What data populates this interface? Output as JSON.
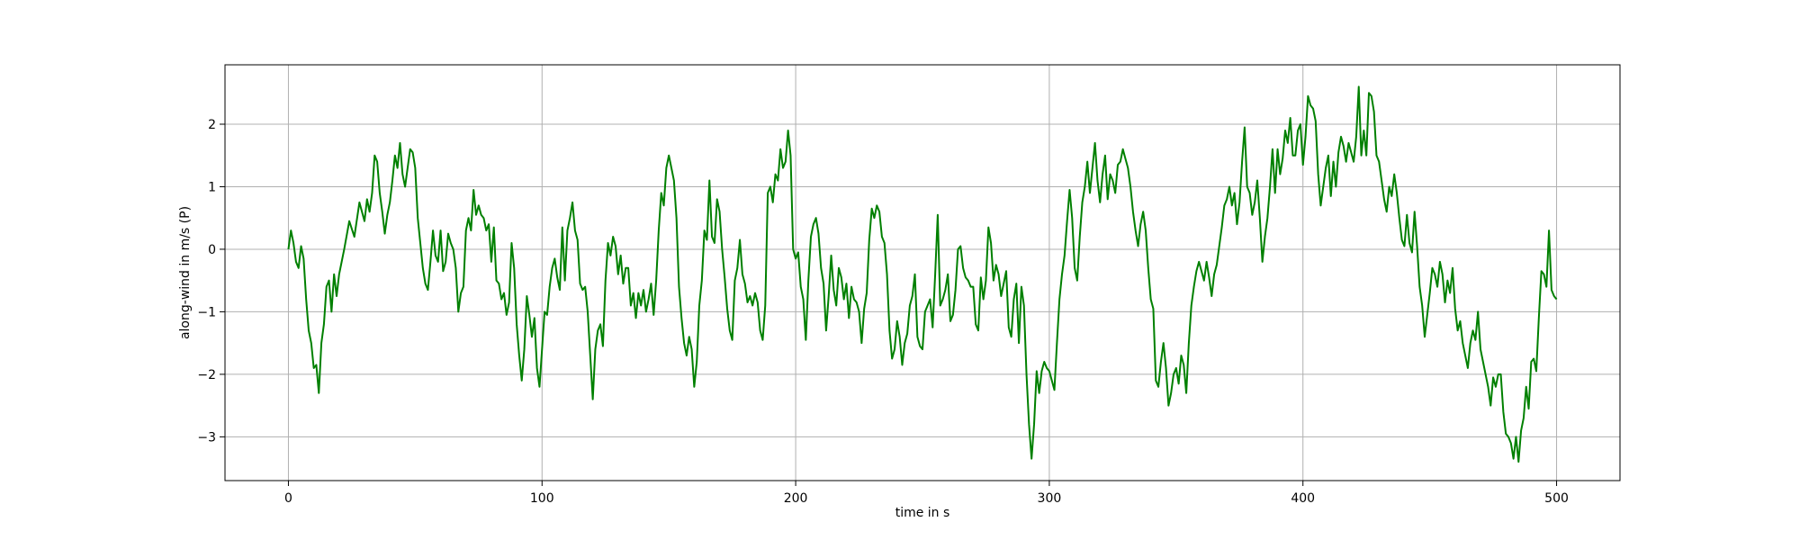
{
  "chart_data": {
    "type": "line",
    "title": "",
    "xlabel": "time in s",
    "ylabel": "along-wind in m/s (P)",
    "xlim": [
      -25,
      525
    ],
    "ylim": [
      -3.7,
      2.95
    ],
    "xticks": [
      0,
      100,
      200,
      300,
      400,
      500
    ],
    "yticks": [
      -3,
      -2,
      -1,
      0,
      1,
      2
    ],
    "xtick_labels": [
      "0",
      "100",
      "200",
      "300",
      "400",
      "500"
    ],
    "ytick_labels": [
      "−3",
      "−2",
      "−1",
      "0",
      "1",
      "2"
    ],
    "grid": true,
    "legend": "none",
    "colors": {
      "line": "#008000",
      "grid": "#b0b0b0",
      "frame": "#000000"
    },
    "series": [
      {
        "x": [
          0,
          1,
          2,
          3,
          4,
          5,
          6,
          7,
          8,
          9,
          10,
          11,
          12,
          13,
          14,
          15,
          16,
          17,
          18,
          19,
          20,
          22,
          24,
          26,
          28,
          30,
          31,
          32,
          33,
          34,
          35,
          36,
          37,
          38,
          39,
          40,
          41,
          42,
          43,
          44,
          45,
          46,
          47,
          48,
          49,
          50,
          51,
          52,
          53,
          54,
          55,
          56,
          57,
          58,
          59,
          60,
          61,
          62,
          63,
          64,
          65,
          66,
          67,
          68,
          69,
          70,
          71,
          72,
          73,
          74,
          75,
          76,
          77,
          78,
          79,
          80,
          81,
          82,
          83,
          84,
          85,
          86,
          87,
          88,
          89,
          90,
          91,
          92,
          93,
          94,
          95,
          96,
          97,
          98,
          99,
          100,
          101,
          102,
          103,
          104,
          105,
          106,
          107,
          108,
          109,
          110,
          111,
          112,
          113,
          114,
          115,
          116,
          117,
          118,
          119,
          120,
          121,
          122,
          123,
          124,
          125,
          126,
          127,
          128,
          129,
          130,
          131,
          132,
          133,
          134,
          135,
          136,
          137,
          138,
          139,
          140,
          141,
          142,
          143,
          144,
          145,
          146,
          147,
          148,
          149,
          150,
          151,
          152,
          153,
          154,
          155,
          156,
          157,
          158,
          159,
          160,
          161,
          162,
          163,
          164,
          165,
          166,
          167,
          168,
          169,
          170,
          171,
          172,
          173,
          174,
          175,
          176,
          177,
          178,
          179,
          180,
          181,
          182,
          183,
          184,
          185,
          186,
          187,
          188,
          189,
          190,
          191,
          192,
          193,
          194,
          195,
          196,
          197,
          198,
          199,
          200,
          201,
          202,
          203,
          204,
          205,
          206,
          207,
          208,
          209,
          210,
          211,
          212,
          213,
          214,
          215,
          216,
          217,
          218,
          219,
          220,
          221,
          222,
          223,
          224,
          225,
          226,
          227,
          228,
          229,
          230,
          231,
          232,
          233,
          234,
          235,
          236,
          237,
          238,
          239,
          240,
          241,
          242,
          243,
          244,
          245,
          246,
          247,
          248,
          249,
          250,
          251,
          252,
          253,
          254,
          255,
          256,
          257,
          258,
          259,
          260,
          261,
          262,
          263,
          264,
          265,
          266,
          267,
          268,
          269,
          270,
          271,
          272,
          273,
          274,
          275,
          276,
          277,
          278,
          279,
          280,
          281,
          282,
          283,
          284,
          285,
          286,
          287,
          288,
          289,
          290,
          291,
          292,
          293,
          294,
          295,
          296,
          297,
          298,
          299,
          300,
          301,
          302,
          303,
          304,
          305,
          306,
          307,
          308,
          309,
          310,
          311,
          312,
          313,
          314,
          315,
          316,
          317,
          318,
          319,
          320,
          321,
          322,
          323,
          324,
          325,
          326,
          327,
          328,
          329,
          330,
          331,
          332,
          333,
          334,
          335,
          336,
          337,
          338,
          339,
          340,
          341,
          342,
          343,
          344,
          345,
          346,
          347,
          348,
          349,
          350,
          351,
          352,
          353,
          354,
          355,
          356,
          357,
          358,
          359,
          360,
          361,
          362,
          363,
          364,
          365,
          366,
          367,
          368,
          369,
          370,
          371,
          372,
          373,
          374,
          375,
          376,
          377,
          378,
          379,
          380,
          381,
          382,
          383,
          384,
          385,
          386,
          387,
          388,
          389,
          390,
          391,
          392,
          393,
          394,
          395,
          396,
          397,
          398,
          399,
          400,
          401,
          402,
          403,
          404,
          405,
          406,
          407,
          408,
          409,
          410,
          411,
          412,
          413,
          414,
          415,
          416,
          417,
          418,
          419,
          420,
          421,
          422,
          423,
          424,
          425,
          426,
          427,
          428,
          429,
          430,
          431,
          432,
          433,
          434,
          435,
          436,
          437,
          438,
          439,
          440,
          441,
          442,
          443,
          444,
          445,
          446,
          447,
          448,
          449,
          450,
          451,
          452,
          453,
          454,
          455,
          456,
          457,
          458,
          459,
          460,
          461,
          462,
          463,
          464,
          465,
          466,
          467,
          468,
          469,
          470,
          471,
          472,
          473,
          474,
          475,
          476,
          477,
          478,
          479,
          480,
          481,
          482,
          483,
          484,
          485,
          486,
          487,
          488,
          489,
          490,
          491,
          492,
          493,
          494,
          495,
          496,
          497,
          498,
          499,
          500
        ],
        "y": [
          0.0,
          0.3,
          0.1,
          -0.2,
          -0.3,
          0.05,
          -0.15,
          -0.8,
          -1.3,
          -1.5,
          -1.9,
          -1.85,
          -2.3,
          -1.5,
          -1.2,
          -0.6,
          -0.5,
          -1.0,
          -0.4,
          -0.75,
          -0.4,
          0.0,
          0.45,
          0.2,
          0.75,
          0.45,
          0.8,
          0.6,
          0.9,
          1.5,
          1.4,
          0.9,
          0.6,
          0.25,
          0.55,
          0.75,
          1.1,
          1.5,
          1.3,
          1.7,
          1.2,
          1.0,
          1.3,
          1.6,
          1.55,
          1.3,
          0.5,
          0.1,
          -0.3,
          -0.55,
          -0.65,
          -0.2,
          0.3,
          -0.1,
          -0.2,
          0.3,
          -0.35,
          -0.2,
          0.25,
          0.1,
          0.0,
          -0.3,
          -1.0,
          -0.7,
          -0.6,
          0.3,
          0.5,
          0.3,
          0.95,
          0.55,
          0.7,
          0.55,
          0.5,
          0.3,
          0.4,
          -0.2,
          0.35,
          -0.5,
          -0.55,
          -0.8,
          -0.7,
          -1.05,
          -0.85,
          0.1,
          -0.3,
          -1.2,
          -1.7,
          -2.1,
          -1.6,
          -0.75,
          -1.05,
          -1.4,
          -1.1,
          -1.9,
          -2.2,
          -1.6,
          -1.0,
          -1.05,
          -0.6,
          -0.3,
          -0.15,
          -0.45,
          -0.65,
          0.35,
          -0.5,
          0.3,
          0.5,
          0.75,
          0.3,
          0.15,
          -0.55,
          -0.65,
          -0.6,
          -1.0,
          -1.7,
          -2.4,
          -1.6,
          -1.3,
          -1.2,
          -1.55,
          -0.5,
          0.1,
          -0.1,
          0.2,
          0.05,
          -0.4,
          -0.1,
          -0.55,
          -0.3,
          -0.3,
          -0.9,
          -0.7,
          -1.1,
          -0.7,
          -0.9,
          -0.65,
          -1.0,
          -0.8,
          -0.55,
          -1.05,
          -0.5,
          0.3,
          0.9,
          0.7,
          1.3,
          1.5,
          1.3,
          1.1,
          0.5,
          -0.6,
          -1.1,
          -1.5,
          -1.7,
          -1.4,
          -1.6,
          -2.2,
          -1.8,
          -0.9,
          -0.5,
          0.3,
          0.15,
          1.1,
          0.2,
          0.1,
          0.8,
          0.6,
          0.0,
          -0.45,
          -0.95,
          -1.3,
          -1.45,
          -0.5,
          -0.3,
          0.15,
          -0.4,
          -0.55,
          -0.85,
          -0.75,
          -0.9,
          -0.7,
          -0.85,
          -1.3,
          -1.45,
          -0.9,
          0.9,
          1.0,
          0.75,
          1.2,
          1.1,
          1.6,
          1.3,
          1.4,
          1.9,
          1.5,
          0.0,
          -0.15,
          -0.05,
          -0.6,
          -0.8,
          -1.45,
          -0.5,
          0.2,
          0.4,
          0.5,
          0.25,
          -0.3,
          -0.55,
          -1.3,
          -0.75,
          -0.1,
          -0.65,
          -0.9,
          -0.3,
          -0.45,
          -0.8,
          -0.55,
          -1.1,
          -0.6,
          -0.8,
          -0.85,
          -1.0,
          -1.5,
          -0.95,
          -0.7,
          0.15,
          0.65,
          0.5,
          0.7,
          0.6,
          0.2,
          0.1,
          -0.4,
          -1.3,
          -1.75,
          -1.6,
          -1.15,
          -1.4,
          -1.85,
          -1.5,
          -1.35,
          -0.9,
          -0.75,
          -0.4,
          -1.4,
          -1.55,
          -1.6,
          -1.0,
          -0.9,
          -0.8,
          -1.25,
          -0.4,
          0.55,
          -0.9,
          -0.8,
          -0.65,
          -0.4,
          -1.15,
          -1.05,
          -0.65,
          0.0,
          0.05,
          -0.3,
          -0.45,
          -0.5,
          -0.6,
          -0.6,
          -1.2,
          -1.3,
          -0.45,
          -0.8,
          -0.5,
          0.35,
          0.1,
          -0.5,
          -0.25,
          -0.4,
          -0.75,
          -0.55,
          -0.35,
          -1.25,
          -1.4,
          -0.8,
          -0.55,
          -1.5,
          -0.6,
          -0.9,
          -2.0,
          -2.8,
          -3.35,
          -2.8,
          -1.95,
          -2.3,
          -1.95,
          -1.8,
          -1.9,
          -1.95,
          -2.1,
          -2.25,
          -1.5,
          -0.8,
          -0.4,
          -0.1,
          0.45,
          0.95,
          0.5,
          -0.3,
          -0.5,
          0.2,
          0.75,
          1.0,
          1.4,
          0.9,
          1.3,
          1.7,
          1.1,
          0.75,
          1.2,
          1.5,
          0.8,
          1.2,
          1.1,
          0.9,
          1.35,
          1.4,
          1.6,
          1.45,
          1.3,
          1.0,
          0.6,
          0.3,
          0.05,
          0.4,
          0.6,
          0.3,
          -0.3,
          -0.8,
          -0.95,
          -2.1,
          -2.2,
          -1.8,
          -1.5,
          -1.9,
          -2.5,
          -2.3,
          -2.0,
          -1.9,
          -2.15,
          -1.7,
          -1.85,
          -2.3,
          -1.5,
          -0.9,
          -0.6,
          -0.35,
          -0.2,
          -0.35,
          -0.5,
          -0.2,
          -0.45,
          -0.75,
          -0.4,
          -0.25,
          0.05,
          0.35,
          0.7,
          0.8,
          1.0,
          0.7,
          0.9,
          0.4,
          0.75,
          1.4,
          1.95,
          1.0,
          0.9,
          0.55,
          0.75,
          1.1,
          0.5,
          -0.2,
          0.2,
          0.5,
          1.0,
          1.6,
          0.9,
          1.6,
          1.2,
          1.45,
          1.9,
          1.7,
          2.1,
          1.5,
          1.5,
          1.9,
          2.0,
          1.35,
          1.8,
          2.45,
          2.3,
          2.25,
          2.05,
          1.2,
          0.7,
          1.0,
          1.3,
          1.5,
          0.85,
          1.4,
          1.0,
          1.55,
          1.8,
          1.65,
          1.4,
          1.7,
          1.55,
          1.4,
          1.8,
          2.6,
          1.5,
          1.9,
          1.5,
          2.5,
          2.45,
          2.2,
          1.5,
          1.4,
          1.1,
          0.8,
          0.6,
          1.0,
          0.85,
          1.2,
          0.9,
          0.5,
          0.15,
          0.05,
          0.55,
          0.1,
          -0.05,
          0.6,
          0.05,
          -0.6,
          -0.9,
          -1.4,
          -1.05,
          -0.7,
          -0.3,
          -0.4,
          -0.6,
          -0.2,
          -0.4,
          -0.85,
          -0.5,
          -0.7,
          -0.3,
          -0.95,
          -1.3,
          -1.15,
          -1.5,
          -1.7,
          -1.9,
          -1.5,
          -1.3,
          -1.45,
          -1.0,
          -1.6,
          -1.8,
          -2.0,
          -2.2,
          -2.5,
          -2.05,
          -2.2,
          -2.0,
          -2.0,
          -2.6,
          -2.95,
          -3.0,
          -3.1,
          -3.35,
          -3.0,
          -3.4,
          -2.9,
          -2.7,
          -2.2,
          -2.55,
          -1.8,
          -1.75,
          -1.95,
          -1.1,
          -0.35,
          -0.4,
          -0.6,
          0.3,
          -0.65,
          -0.75,
          -0.8
        ]
      }
    ]
  }
}
